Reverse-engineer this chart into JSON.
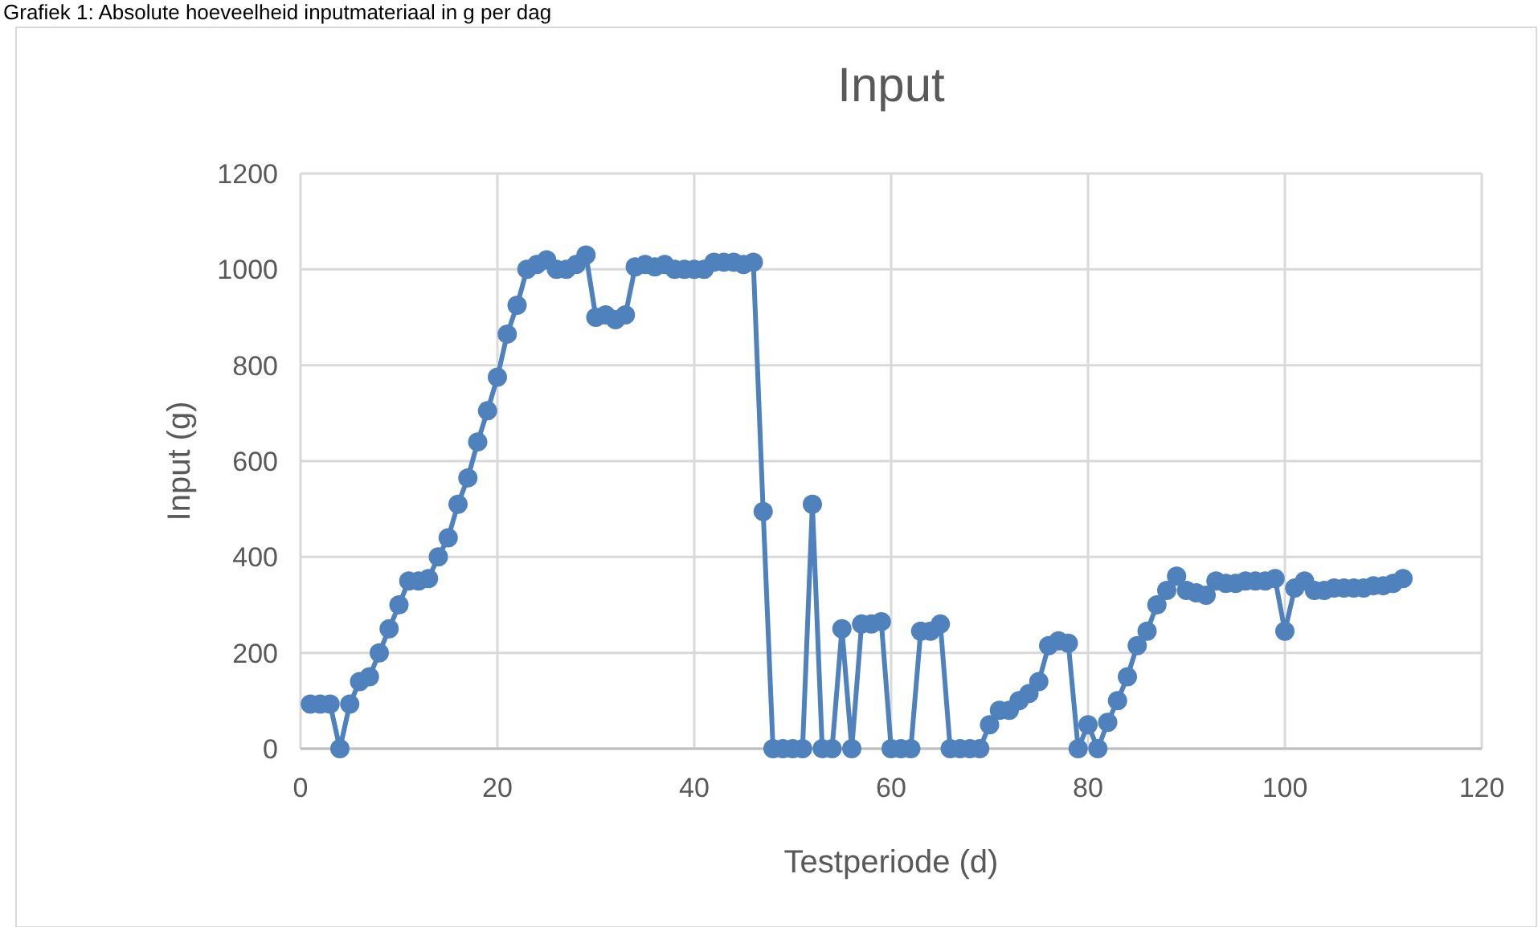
{
  "chart_data": {
    "type": "line",
    "title": "Input",
    "xlabel": "Testperiode (d)",
    "ylabel": "Input (g)",
    "annotations": [
      "Grafiek 1: Absolute hoeveelheid inputmateriaal in g per dag"
    ],
    "x": [
      1,
      2,
      3,
      4,
      5,
      6,
      7,
      8,
      9,
      10,
      11,
      12,
      13,
      14,
      15,
      16,
      17,
      18,
      19,
      20,
      21,
      22,
      23,
      24,
      25,
      26,
      27,
      28,
      29,
      30,
      31,
      32,
      33,
      34,
      35,
      36,
      37,
      38,
      39,
      40,
      41,
      42,
      43,
      44,
      45,
      46,
      47,
      48,
      49,
      50,
      51,
      52,
      53,
      54,
      55,
      56,
      57,
      58,
      59,
      60,
      61,
      62,
      63,
      64,
      65,
      66,
      67,
      68,
      69,
      70,
      71,
      72,
      73,
      74,
      75,
      76,
      77,
      78,
      79,
      80,
      81,
      82,
      83,
      84,
      85,
      86,
      87,
      88,
      89,
      90,
      91,
      92,
      93,
      94,
      95,
      96,
      97,
      98,
      99,
      100,
      101,
      102,
      103,
      104,
      105,
      106,
      107,
      108,
      109,
      110,
      111,
      112
    ],
    "series": [
      {
        "color": "#4f81bd",
        "values": [
          93,
          93,
          93,
          0,
          93,
          140,
          150,
          200,
          250,
          300,
          350,
          350,
          355,
          400,
          440,
          510,
          565,
          640,
          705,
          775,
          865,
          925,
          1000,
          1010,
          1020,
          1000,
          1000,
          1010,
          1030,
          900,
          905,
          895,
          905,
          1005,
          1010,
          1005,
          1010,
          1000,
          1000,
          1000,
          1000,
          1015,
          1015,
          1015,
          1010,
          1015,
          495,
          0,
          0,
          0,
          0,
          510,
          0,
          0,
          250,
          0,
          260,
          260,
          265,
          0,
          0,
          0,
          245,
          245,
          260,
          0,
          0,
          0,
          0,
          50,
          80,
          80,
          100,
          115,
          140,
          215,
          225,
          220,
          0,
          50,
          0,
          55,
          100,
          150,
          215,
          245,
          300,
          330,
          360,
          330,
          325,
          320,
          350,
          345,
          345,
          350,
          350,
          350,
          355,
          245,
          335,
          350,
          330,
          330,
          335,
          335,
          335,
          335,
          340,
          340,
          345,
          355
        ]
      }
    ],
    "xlim": [
      0,
      120
    ],
    "xticks": [
      0,
      20,
      40,
      60,
      80,
      100,
      120
    ],
    "ylim": [
      0,
      1200
    ],
    "yticks": [
      0,
      200,
      400,
      600,
      800,
      1000,
      1200
    ],
    "grid": true,
    "marker": "circle",
    "line_style": "solid"
  }
}
